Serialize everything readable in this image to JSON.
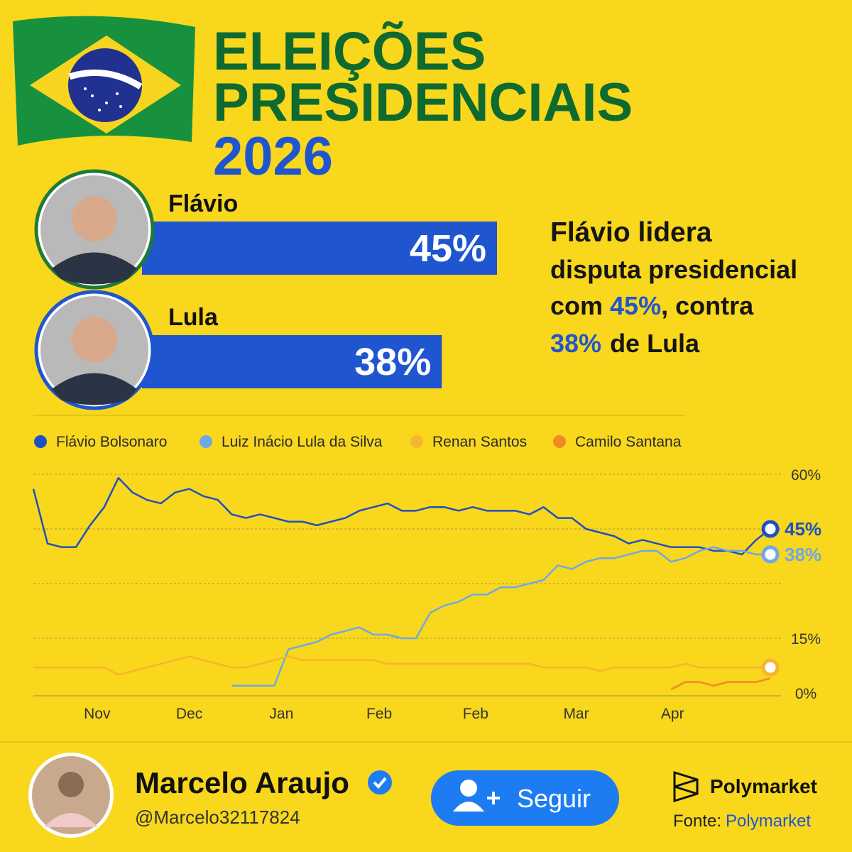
{
  "header": {
    "title_lines": [
      "ELEIÇÕES",
      "PRESIDENCIAIS"
    ],
    "year": "2026"
  },
  "summary": [
    "Flávio lidera",
    "disputa presidencial",
    "com",
    "45%",
    ", contra",
    "38%",
    "de Lula"
  ],
  "chart_data": [
    {
      "type": "hbar",
      "categories": [
        "Flávio",
        "Lula"
      ],
      "values": [
        45,
        38
      ],
      "value_labels": [
        "45%",
        "38%"
      ],
      "color": "#1f56d0",
      "ring_colors": [
        "#1f7a35",
        "#1f56d0"
      ]
    },
    {
      "type": "line",
      "x": [
        0,
        1,
        2,
        3,
        4,
        5,
        6,
        7,
        8,
        9,
        10,
        11,
        12,
        13,
        14,
        15,
        16,
        17,
        18,
        19,
        20,
        21,
        22,
        23,
        24,
        25,
        26,
        27,
        28,
        29,
        30,
        31,
        32,
        33,
        34,
        35,
        36,
        37,
        38,
        39,
        40,
        41,
        42,
        43,
        44,
        45,
        46,
        47,
        48,
        49,
        50,
        51,
        52
      ],
      "xlim": [
        0,
        52
      ],
      "ylim": [
        0,
        60
      ],
      "xticks": [
        {
          "value": 4.5,
          "label": "Nov"
        },
        {
          "value": 11,
          "label": "Dec"
        },
        {
          "value": 17.5,
          "label": "Jan"
        },
        {
          "value": 24.4,
          "label": "Feb"
        },
        {
          "value": 31.2,
          "label": "Feb"
        },
        {
          "value": 38.3,
          "label": "Mar"
        },
        {
          "value": 45.1,
          "label": "Apr"
        }
      ],
      "yticks": [
        {
          "value": 0,
          "label": "0%"
        },
        {
          "value": 15,
          "label": "15%"
        },
        {
          "value": 60,
          "label": "60%"
        }
      ],
      "gridlines": [
        15,
        30,
        45,
        60
      ],
      "series": [
        {
          "name": "Flávio Bolsonaro",
          "color": "#1f4fc4",
          "end_label": "45%",
          "end_marker": true,
          "values": [
            56,
            41,
            40,
            40,
            46,
            51,
            59,
            55,
            53,
            52,
            55,
            56,
            54,
            53,
            49,
            48,
            49,
            48,
            47,
            47,
            46,
            47,
            48,
            50,
            51,
            52,
            50,
            50,
            51,
            51,
            50,
            51,
            50,
            50,
            50,
            49,
            51,
            48,
            48,
            45,
            44,
            43,
            41,
            42,
            41,
            40,
            40,
            40,
            39,
            39,
            38,
            42,
            45
          ]
        },
        {
          "name": "Luiz Inácio Lula da Silva",
          "color": "#6ea8e8",
          "end_label": "38%",
          "end_marker": true,
          "values": [
            null,
            null,
            null,
            null,
            null,
            null,
            null,
            null,
            null,
            null,
            null,
            null,
            null,
            null,
            2,
            2,
            2,
            2,
            12,
            13,
            14,
            16,
            17,
            18,
            16,
            16,
            15,
            15,
            22,
            24,
            25,
            27,
            27,
            29,
            29,
            30,
            31,
            35,
            34,
            36,
            37,
            37,
            38,
            39,
            39,
            36,
            37,
            39,
            40,
            39,
            39,
            38,
            38
          ]
        },
        {
          "name": "Renan Santos",
          "color": "#f5b52e",
          "end_marker": true,
          "values": [
            7,
            7,
            7,
            7,
            7,
            7,
            5,
            6,
            7,
            8,
            9,
            10,
            9,
            8,
            7,
            7,
            8,
            9,
            10,
            9,
            9,
            9,
            9,
            9,
            9,
            8,
            8,
            8,
            8,
            8,
            8,
            8,
            8,
            8,
            8,
            8,
            7,
            7,
            7,
            7,
            6,
            7,
            7,
            7,
            7,
            7,
            8,
            7,
            7,
            7,
            7,
            7,
            7
          ]
        },
        {
          "name": "Camilo Santana",
          "color": "#f08a24",
          "values": [
            null,
            null,
            null,
            null,
            null,
            null,
            null,
            null,
            null,
            null,
            null,
            null,
            null,
            null,
            null,
            null,
            null,
            null,
            null,
            null,
            null,
            null,
            null,
            null,
            null,
            null,
            null,
            null,
            null,
            null,
            null,
            null,
            null,
            null,
            null,
            null,
            null,
            null,
            null,
            null,
            null,
            null,
            null,
            null,
            null,
            1,
            3,
            3,
            2,
            3,
            3,
            3,
            4
          ]
        }
      ]
    }
  ],
  "footer": {
    "name": "Marcelo Araujo",
    "handle": "@Marcelo32117824",
    "button": "Seguir",
    "brand": "Polymarket",
    "source_label": "Fonte:",
    "source": "Polymarket"
  }
}
